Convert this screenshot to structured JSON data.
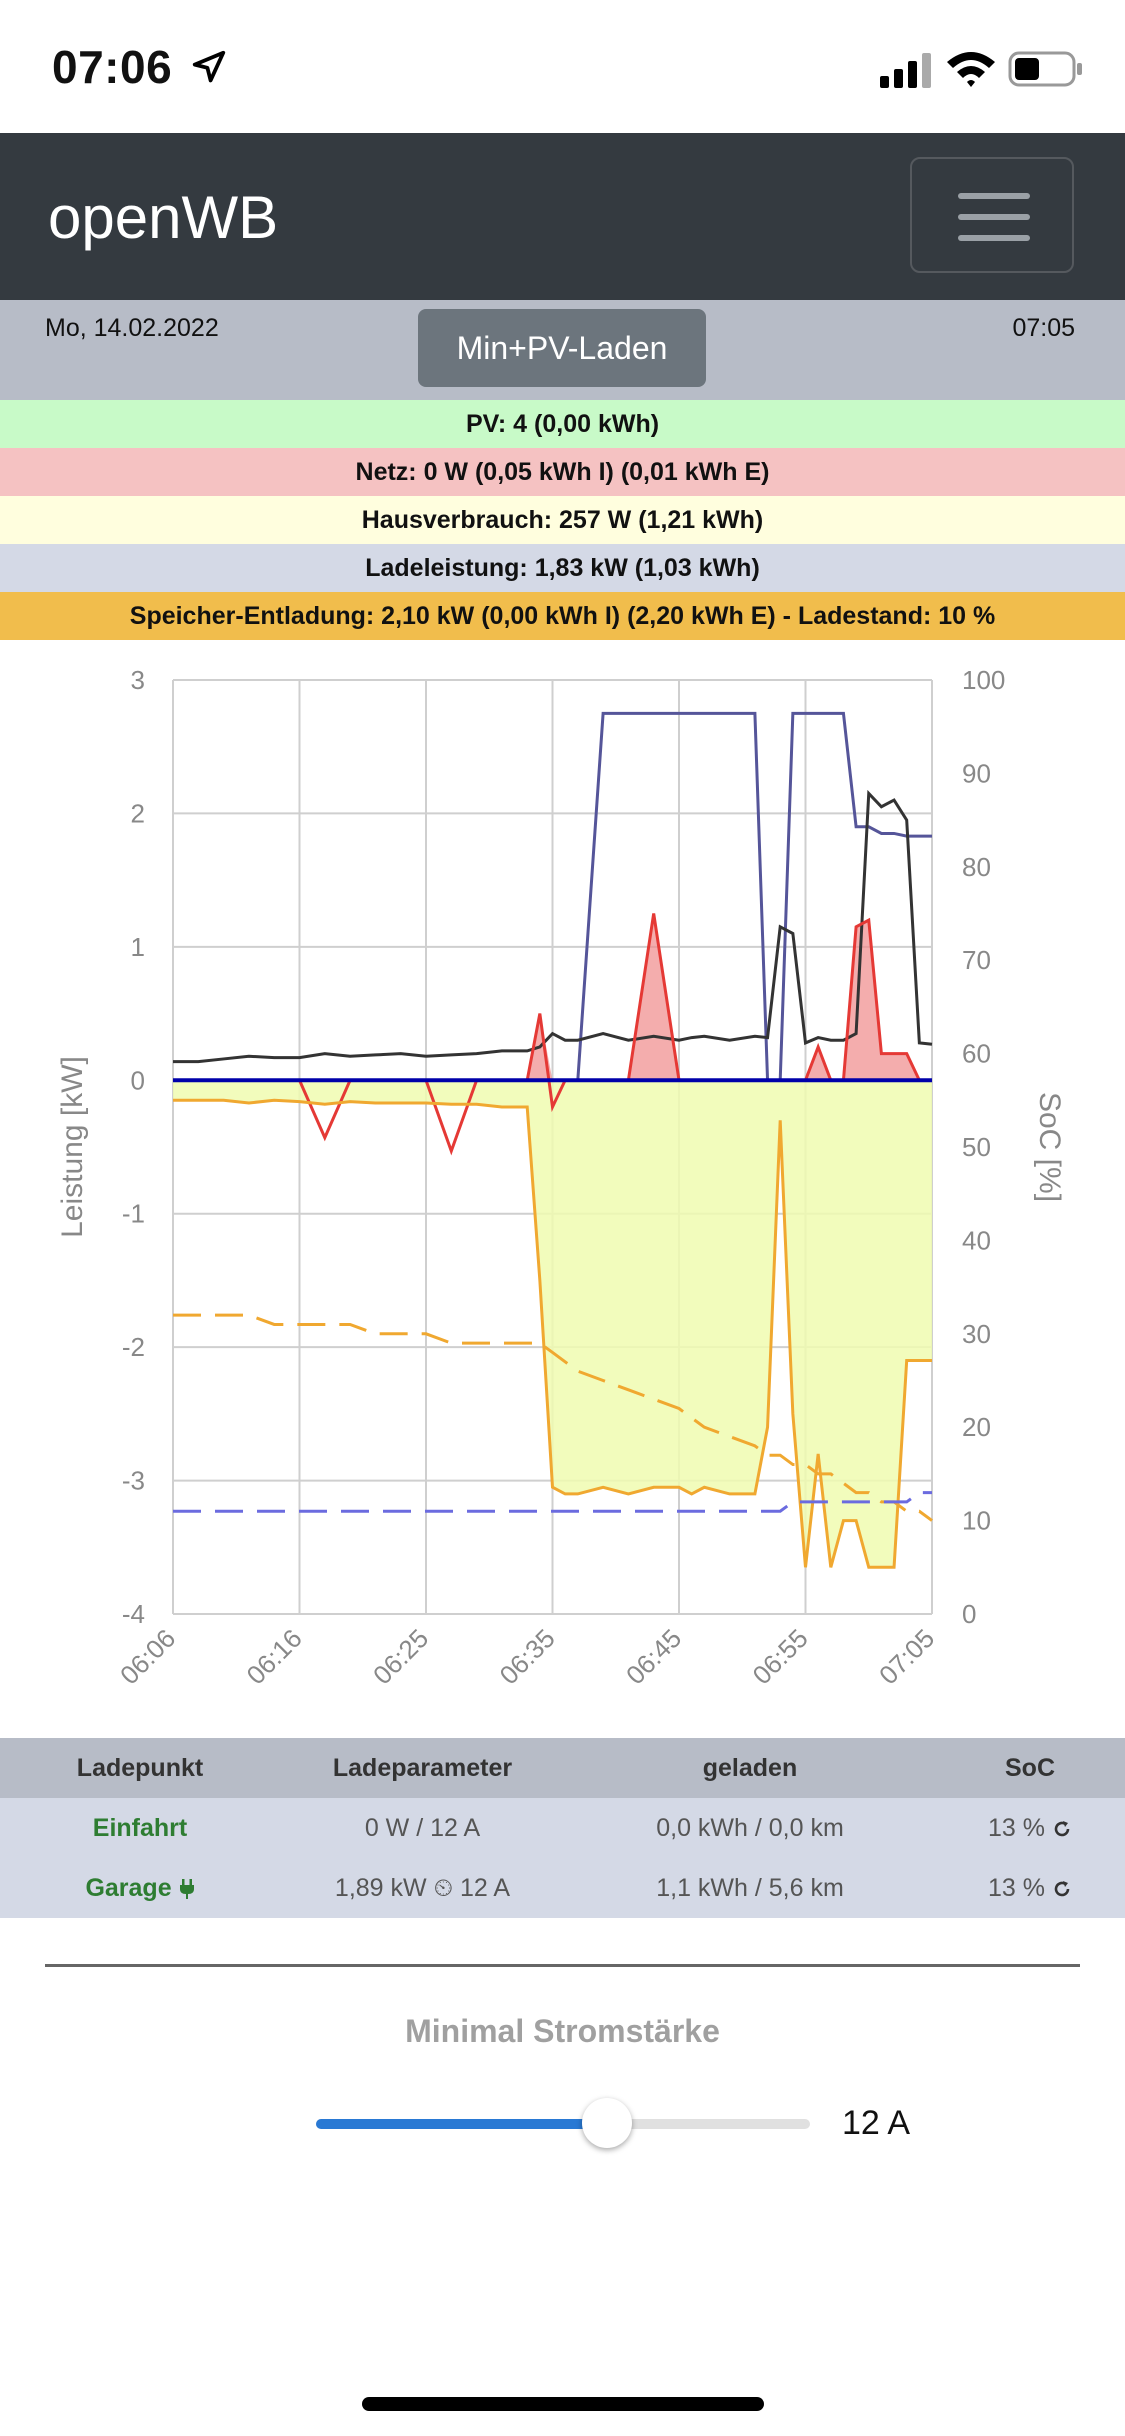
{
  "statusbar": {
    "time": "07:06"
  },
  "navbar": {
    "brand": "openWB"
  },
  "info": {
    "date": "Mo, 14.02.2022",
    "mode": "Min+PV-Laden",
    "time": "07:05"
  },
  "summary": {
    "pv": "PV: 4 (0,00 kWh)",
    "netz": "Netz: 0 W (0,05 kWh I) (0,01 kWh E)",
    "haus": "Hausverbrauch: 257 W (1,21 kWh)",
    "lade": "Ladeleistung: 1,83 kW (1,03 kWh)",
    "speicher": "Speicher-Entladung: 2,10 kW (0,00 kWh I) (2,20 kWh E) - Ladestand: 10 %"
  },
  "colors": {
    "navbar": "#343a40",
    "pv": "#c8fac8",
    "netz": "#f5c2c2",
    "haus": "#fffede",
    "lade": "#d4d9e6",
    "speicher": "#f1bd4c",
    "slider": "#2979d4"
  },
  "chart_data": {
    "type": "line",
    "ylabel": "Leistung [kW]",
    "y2label": "SoC [%]",
    "ylim": [
      -4,
      3
    ],
    "y2lim": [
      0,
      100
    ],
    "y_ticks": [
      "3",
      "2",
      "1",
      "0",
      "-1",
      "-2",
      "-3",
      "-4"
    ],
    "y2_ticks": [
      "100",
      "90",
      "80",
      "70",
      "60",
      "50",
      "40",
      "30",
      "20",
      "10",
      "0"
    ],
    "x_ticks": [
      "06:06",
      "06:16",
      "06:25",
      "06:35",
      "06:45",
      "06:55",
      "07:05"
    ],
    "grid": true,
    "x": [
      0,
      2,
      4,
      6,
      8,
      10,
      12,
      14,
      16,
      18,
      20,
      22,
      24,
      26,
      28,
      29,
      30,
      31,
      32,
      34,
      36,
      38,
      40,
      41,
      42,
      44,
      46,
      47,
      48,
      49,
      50,
      51,
      52,
      53,
      54,
      55,
      56,
      57,
      58,
      59,
      60
    ],
    "series": [
      {
        "color": "#555599",
        "axis": "y",
        "values": [
          0,
          0,
          0,
          0,
          0,
          0,
          0,
          0,
          0,
          0,
          0,
          0,
          0,
          0,
          0,
          0,
          0,
          0,
          0,
          2.75,
          2.75,
          2.75,
          2.75,
          2.75,
          2.75,
          2.75,
          2.75,
          0,
          0,
          2.75,
          2.75,
          2.75,
          2.75,
          2.75,
          1.9,
          1.9,
          1.85,
          1.85,
          1.83,
          1.83,
          1.83
        ]
      },
      {
        "color": "#333333",
        "axis": "y",
        "values": [
          0.14,
          0.14,
          0.16,
          0.18,
          0.17,
          0.17,
          0.2,
          0.18,
          0.19,
          0.2,
          0.18,
          0.19,
          0.2,
          0.22,
          0.22,
          0.25,
          0.35,
          0.3,
          0.3,
          0.35,
          0.3,
          0.33,
          0.3,
          0.32,
          0.33,
          0.3,
          0.33,
          0.32,
          1.15,
          1.1,
          0.28,
          0.32,
          0.3,
          0.3,
          0.35,
          2.15,
          2.05,
          2.1,
          1.95,
          0.28,
          0.27
        ]
      },
      {
        "color": "#e53935",
        "axis": "y",
        "values": [
          0,
          0,
          0,
          0,
          0,
          0,
          -0.43,
          0,
          0,
          0,
          0,
          -0.53,
          0,
          0,
          0,
          0.5,
          -0.2,
          0,
          0,
          0,
          0,
          1.25,
          0,
          0,
          0,
          0,
          0,
          0,
          0,
          0,
          0,
          0.25,
          0,
          0,
          1.15,
          1.2,
          0.2,
          0.2,
          0.2,
          0,
          0
        ]
      },
      {
        "color": "#f0a830",
        "axis": "y",
        "values": [
          -0.15,
          -0.15,
          -0.15,
          -0.17,
          -0.15,
          -0.16,
          -0.18,
          -0.16,
          -0.17,
          -0.17,
          -0.17,
          -0.18,
          -0.18,
          -0.2,
          -0.2,
          -1.5,
          -3.05,
          -3.1,
          -3.1,
          -3.05,
          -3.1,
          -3.05,
          -3.05,
          -3.1,
          -3.05,
          -3.1,
          -3.1,
          -2.6,
          -0.3,
          -2.5,
          -3.65,
          -2.8,
          -3.65,
          -3.3,
          -3.3,
          -3.65,
          -3.65,
          -3.65,
          -2.1,
          -2.1,
          -2.1
        ]
      },
      {
        "color": "#f0a830",
        "axis": "y2",
        "dashed": true,
        "values": [
          32,
          32,
          32,
          32,
          31,
          31,
          31,
          31,
          30,
          30,
          30,
          29,
          29,
          29,
          29,
          29,
          28,
          27,
          26,
          25,
          24,
          23,
          22,
          21,
          20,
          19,
          18,
          17,
          17,
          16,
          16,
          15,
          15,
          14,
          13,
          13,
          12,
          12,
          11,
          11,
          10
        ]
      },
      {
        "color": "#6b6bdf",
        "axis": "y2",
        "dashed": true,
        "values": [
          11,
          11,
          11,
          11,
          11,
          11,
          11,
          11,
          11,
          11,
          11,
          11,
          11,
          11,
          11,
          11,
          11,
          11,
          11,
          11,
          11,
          11,
          11,
          11,
          11,
          11,
          11,
          11,
          11,
          12,
          12,
          12,
          12,
          12,
          12,
          12,
          12,
          12,
          12,
          13,
          13
        ]
      },
      {
        "color": "#0000aa",
        "axis": "y",
        "values": [
          0,
          0,
          0,
          0,
          0,
          0,
          0,
          0,
          0,
          0,
          0,
          0,
          0,
          0,
          0,
          0,
          0,
          0,
          0,
          0,
          0,
          0,
          0,
          0,
          0,
          0,
          0,
          0,
          0,
          0,
          0,
          0,
          0,
          0,
          0,
          0,
          0,
          0,
          0,
          0,
          0
        ]
      }
    ]
  },
  "table": {
    "headers": [
      "Ladepunkt",
      "Ladeparameter",
      "geladen",
      "SoC"
    ],
    "rows": [
      {
        "name": "Einfahrt",
        "param": "0 W / 12 A",
        "geladen": "0,0 kWh / 0,0 km",
        "soc": "13 %"
      },
      {
        "name": "Garage",
        "param": "1,89 kW ⏲ 12 A",
        "geladen": "1,1 kWh / 5,6 km",
        "soc": "13 %"
      }
    ]
  },
  "slider": {
    "title": "Minimal Stromstärke",
    "value_label": "12 A",
    "fill_fraction": 0.59
  }
}
